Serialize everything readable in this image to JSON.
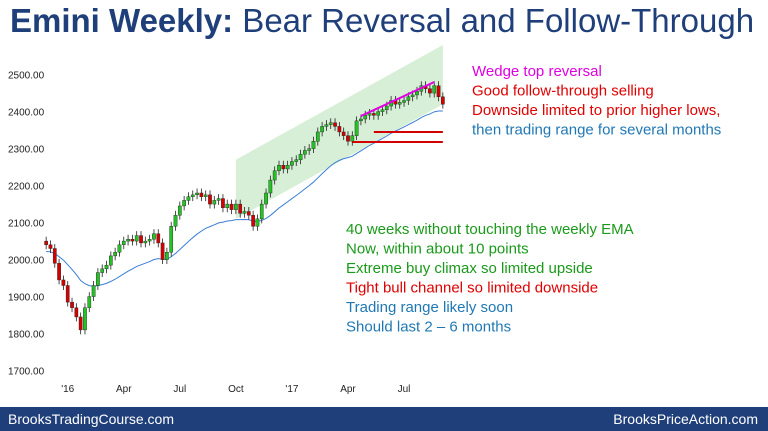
{
  "title": {
    "bold": "Emini Weekly:",
    "rest": " Bear Reversal and Follow-Through"
  },
  "footer": {
    "left": "BrooksTradingCourse.com",
    "right": "BrooksPriceAction.com"
  },
  "colors": {
    "bull": "#22c322",
    "bear": "#d40000",
    "ema": "#3a7fd5",
    "channel": "#cdebcd",
    "navy": "#1f3f7a",
    "magenta": "#e000e0",
    "green_text": "#1a9a1a",
    "red_text": "#e00000",
    "blue_text": "#1f78b4"
  },
  "annotations_top": [
    {
      "text": "Wedge top reversal",
      "color": "#e000e0"
    },
    {
      "text": "Good follow-through selling",
      "color": "#e00000"
    },
    {
      "text": "Downside limited to prior higher lows,",
      "color": "#e00000"
    },
    {
      "text": "then trading range for several months",
      "color": "#1f78b4"
    }
  ],
  "annotations_mid": [
    {
      "text": "40 weeks without touching the weekly EMA",
      "color": "#1a9a1a"
    },
    {
      "text": "Now, within about 10 points",
      "color": "#1a9a1a"
    },
    {
      "text": "Extreme buy climax so limited upside",
      "color": "#1a9a1a"
    },
    {
      "text": "Tight bull channel so limited downside",
      "color": "#e00000"
    },
    {
      "text": "Trading range likely soon",
      "color": "#1f78b4"
    },
    {
      "text": "Should last 2 – 6 months",
      "color": "#1f78b4"
    }
  ],
  "chart_data": {
    "type": "candlestick",
    "title": "Emini Weekly: Bear Reversal and Follow-Through",
    "ylim": [
      1680,
      2580
    ],
    "y_ticks": [
      "2500.00",
      "2400.00",
      "2300.00",
      "2200.00",
      "2100.00",
      "2000.00",
      "1900.00",
      "1800.00",
      "1700.00"
    ],
    "y_tick_values": [
      2500,
      2400,
      2300,
      2200,
      2100,
      2000,
      1900,
      1800,
      1700
    ],
    "x_labels": [
      {
        "label": "'16",
        "week": 5
      },
      {
        "label": "Apr",
        "week": 18
      },
      {
        "label": "Jul",
        "week": 31
      },
      {
        "label": "Oct",
        "week": 44
      },
      {
        "label": "'17",
        "week": 57
      },
      {
        "label": "Apr",
        "week": 70
      },
      {
        "label": "Jul",
        "week": 83
      }
    ],
    "weeks": 93,
    "close": [
      2040,
      2030,
      1990,
      1945,
      1930,
      1885,
      1870,
      1845,
      1810,
      1870,
      1900,
      1930,
      1965,
      1975,
      1985,
      2010,
      2020,
      2040,
      2050,
      2055,
      2050,
      2065,
      2045,
      2050,
      2055,
      2070,
      2045,
      2000,
      2020,
      2090,
      2120,
      2145,
      2160,
      2170,
      2175,
      2180,
      2170,
      2175,
      2150,
      2160,
      2165,
      2140,
      2150,
      2135,
      2150,
      2125,
      2130,
      2120,
      2090,
      2110,
      2150,
      2180,
      2215,
      2240,
      2255,
      2245,
      2255,
      2265,
      2270,
      2285,
      2295,
      2300,
      2320,
      2345,
      2360,
      2365,
      2370,
      2360,
      2345,
      2335,
      2320,
      2335,
      2375,
      2380,
      2390,
      2395,
      2390,
      2400,
      2405,
      2415,
      2430,
      2420,
      2425,
      2430,
      2440,
      2445,
      2455,
      2470,
      2462,
      2450,
      2470,
      2440,
      2420
    ],
    "ema_week_range": [
      0,
      92
    ],
    "channel": {
      "upper": [
        [
          44,
          2270
        ],
        [
          92,
          2580
        ]
      ],
      "lower": [
        [
          44,
          2110
        ],
        [
          92,
          2420
        ]
      ]
    },
    "wedge_line": [
      [
        73,
        2388
      ],
      [
        90,
        2480
      ]
    ],
    "support_lines": [
      {
        "y": 2345,
        "from": 76,
        "to": 92
      },
      {
        "y": 2318,
        "from": 71,
        "to": 92
      }
    ]
  }
}
